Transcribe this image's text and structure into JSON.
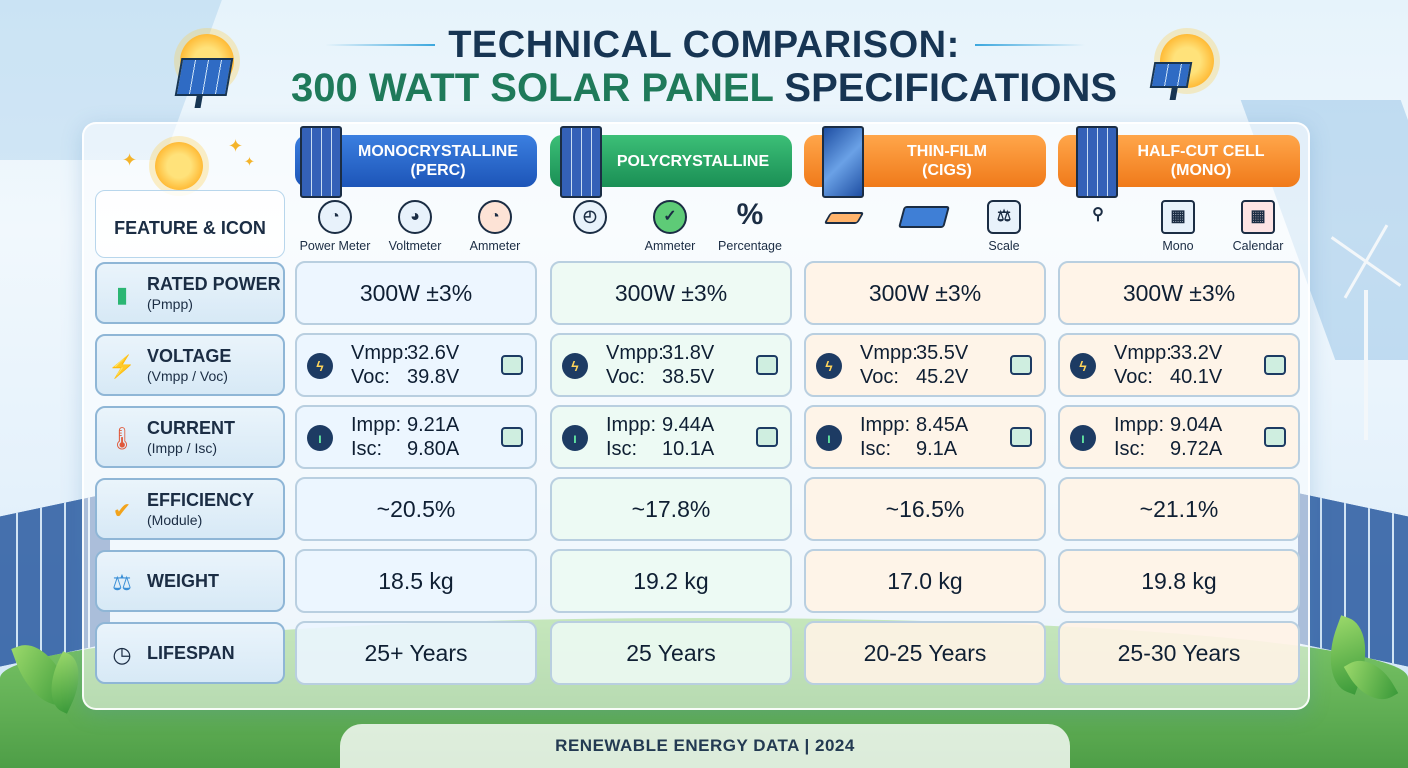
{
  "title": {
    "line1": "TECHNICAL COMPARISON:",
    "line2_highlight": "300 WATT SOLAR PANEL",
    "line2_rest": "SPECIFICATIONS"
  },
  "feature_header": "FEATURE & ICON",
  "columns": [
    {
      "name": "MONOCRYSTALLINE",
      "sub": "(PERC)",
      "color": "#1d55b8",
      "icons": [
        {
          "icon": "gauge-icon",
          "label": "Power Meter"
        },
        {
          "icon": "voltmeter-icon",
          "label": "Voltmeter"
        },
        {
          "icon": "ammeter-icon",
          "label": "Ammeter"
        }
      ]
    },
    {
      "name": "POLYCRYSTALLINE",
      "sub": "",
      "color": "#1a8f55",
      "icons": [
        {
          "icon": "gauge-icon",
          "label": ""
        },
        {
          "icon": "ammeter-icon",
          "label": "Ammeter"
        },
        {
          "icon": "percent-icon",
          "label": "Percentage"
        }
      ]
    },
    {
      "name": "THIN-FILM",
      "sub": "(CIGS)",
      "color": "#f07a1a",
      "icons": [
        {
          "icon": "film-icon",
          "label": ""
        },
        {
          "icon": "panel-icon",
          "label": ""
        },
        {
          "icon": "scale-icon",
          "label": "Scale"
        }
      ]
    },
    {
      "name": "HALF-CUT CELL",
      "sub": "(MONO)",
      "color": "#f07a1a",
      "icons": [
        {
          "icon": "network-icon",
          "label": ""
        },
        {
          "icon": "grid-icon",
          "label": "Mono"
        },
        {
          "icon": "calendar-icon",
          "label": "Calendar"
        }
      ]
    }
  ],
  "rows": [
    {
      "label": "RATED POWER",
      "sub": "(Pmpp)",
      "icon": "battery-icon",
      "values": [
        "300W ±3%",
        "300W ±3%",
        "300W ±3%",
        "300W ±3%"
      ]
    },
    {
      "label": "VOLTAGE",
      "sub": "(Vmpp / Voc)",
      "icon": "lightning-icon",
      "pairs": [
        {
          "k1": "Vmpp:",
          "v1": "32.6V",
          "k2": "Voc:",
          "v2": "39.8V"
        },
        {
          "k1": "Vmpp:",
          "v1": "31.8V",
          "k2": "Voc:",
          "v2": "38.5V"
        },
        {
          "k1": "Vmpp:",
          "v1": "35.5V",
          "k2": "Voc:",
          "v2": "45.2V"
        },
        {
          "k1": "Vmpp:",
          "v1": "33.2V",
          "k2": "Voc:",
          "v2": "40.1V"
        }
      ]
    },
    {
      "label": "CURRENT",
      "sub": "(Impp / Isc)",
      "icon": "thermometer-icon",
      "pairs": [
        {
          "k1": "Impp:",
          "v1": "9.21A",
          "k2": "Isc:",
          "v2": "9.80A"
        },
        {
          "k1": "Impp:",
          "v1": "9.44A",
          "k2": "Isc:",
          "v2": "10.1A"
        },
        {
          "k1": "Impp:",
          "v1": "8.45A",
          "k2": "Isc:",
          "v2": "9.1A"
        },
        {
          "k1": "Impp:",
          "v1": "9.04A",
          "k2": "Isc:",
          "v2": "9.72A"
        }
      ]
    },
    {
      "label": "EFFICIENCY",
      "sub": "(Module)",
      "icon": "check-badge-icon",
      "values": [
        "~20.5%",
        "~17.8%",
        "~16.5%",
        "~21.1%"
      ]
    },
    {
      "label": "WEIGHT",
      "sub": "",
      "icon": "weight-icon",
      "values": [
        "18.5 kg",
        "19.2 kg",
        "17.0 kg",
        "19.8 kg"
      ]
    },
    {
      "label": "LIFESPAN",
      "sub": "",
      "icon": "clock-icon",
      "values": [
        "25+ Years",
        "25 Years",
        "20-25 Years",
        "25-30 Years"
      ]
    }
  ],
  "footer": "RENEWABLE ENERGY DATA | 2024"
}
